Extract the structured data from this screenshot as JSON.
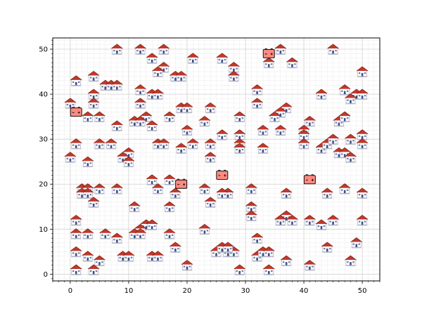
{
  "chart_data": {
    "type": "scatter",
    "title": "",
    "xlabel": "",
    "ylabel": "",
    "xlim": [
      -3,
      53
    ],
    "ylim": [
      -1.5,
      52.5
    ],
    "x_ticks": [
      "0",
      "10",
      "20",
      "30",
      "40",
      "50"
    ],
    "y_ticks": [
      "0",
      "10",
      "20",
      "30",
      "40",
      "50"
    ],
    "grid": "major and minor",
    "colors": {
      "roof": "#c0392b",
      "wall": "#ffffff",
      "door": "#3a4f8c",
      "battery": "#ff8a80",
      "battery_outline": "#000000"
    },
    "series": [
      {
        "marker_icon": "house-icon",
        "points": [
          [
            8,
            50
          ],
          [
            12,
            50
          ],
          [
            16,
            50
          ],
          [
            36,
            50
          ],
          [
            45,
            50
          ],
          [
            14,
            48
          ],
          [
            21,
            48
          ],
          [
            26,
            48
          ],
          [
            34,
            47
          ],
          [
            38,
            47
          ],
          [
            16,
            46
          ],
          [
            28,
            46
          ],
          [
            50,
            45
          ],
          [
            15,
            45
          ],
          [
            18,
            44
          ],
          [
            19,
            44
          ],
          [
            28,
            44
          ],
          [
            4,
            44
          ],
          [
            1,
            43
          ],
          [
            6,
            42
          ],
          [
            7,
            42
          ],
          [
            8,
            42
          ],
          [
            12,
            41
          ],
          [
            14,
            40
          ],
          [
            15,
            40
          ],
          [
            32,
            41
          ],
          [
            43,
            40
          ],
          [
            47,
            41
          ],
          [
            49,
            40
          ],
          [
            50,
            40
          ],
          [
            4,
            40
          ],
          [
            4,
            38
          ],
          [
            0,
            38
          ],
          [
            12,
            38
          ],
          [
            32,
            38
          ],
          [
            48,
            39
          ],
          [
            19,
            37
          ],
          [
            20,
            37
          ],
          [
            24,
            37
          ],
          [
            37,
            37
          ],
          [
            36,
            36
          ],
          [
            3,
            35
          ],
          [
            5,
            35
          ],
          [
            13,
            35
          ],
          [
            17,
            35
          ],
          [
            29,
            35
          ],
          [
            35,
            35
          ],
          [
            11,
            34
          ],
          [
            12,
            34
          ],
          [
            14,
            33
          ],
          [
            8,
            33
          ],
          [
            23,
            34
          ],
          [
            41,
            34
          ],
          [
            33,
            32
          ],
          [
            36,
            32
          ],
          [
            40,
            32
          ],
          [
            20,
            32
          ],
          [
            26,
            31
          ],
          [
            29,
            31
          ],
          [
            40,
            31
          ],
          [
            46,
            34
          ],
          [
            47,
            35
          ],
          [
            50,
            31
          ],
          [
            1,
            29
          ],
          [
            5,
            29
          ],
          [
            7,
            29
          ],
          [
            15,
            29
          ],
          [
            16,
            29
          ],
          [
            24,
            29
          ],
          [
            29,
            29
          ],
          [
            40,
            29
          ],
          [
            43,
            28
          ],
          [
            44,
            29
          ],
          [
            45,
            30
          ],
          [
            48,
            30
          ],
          [
            50,
            29
          ],
          [
            19,
            28
          ],
          [
            21,
            29
          ],
          [
            29,
            28
          ],
          [
            33,
            28
          ],
          [
            10,
            27
          ],
          [
            9,
            26
          ],
          [
            10,
            25
          ],
          [
            0,
            26
          ],
          [
            3,
            25
          ],
          [
            24,
            26
          ],
          [
            46,
            27
          ],
          [
            47,
            27
          ],
          [
            48,
            26
          ],
          [
            14,
            21
          ],
          [
            17,
            21
          ],
          [
            15,
            19
          ],
          [
            18,
            18
          ],
          [
            23,
            19
          ],
          [
            27,
            18
          ],
          [
            26,
            18
          ],
          [
            31,
            19
          ],
          [
            2,
            19
          ],
          [
            3,
            19
          ],
          [
            5,
            19
          ],
          [
            8,
            19
          ],
          [
            2,
            18
          ],
          [
            3,
            18
          ],
          [
            4,
            16
          ],
          [
            37,
            18
          ],
          [
            44,
            18
          ],
          [
            47,
            19
          ],
          [
            50,
            18
          ],
          [
            11,
            15
          ],
          [
            17,
            15
          ],
          [
            24,
            16
          ],
          [
            31,
            15
          ],
          [
            31,
            13
          ],
          [
            1,
            12
          ],
          [
            13,
            11
          ],
          [
            12,
            10
          ],
          [
            14,
            11
          ],
          [
            11,
            9
          ],
          [
            12,
            9
          ],
          [
            36,
            12
          ],
          [
            37,
            13
          ],
          [
            36,
            12
          ],
          [
            38,
            12
          ],
          [
            41,
            12
          ],
          [
            43,
            11
          ],
          [
            45,
            12
          ],
          [
            50,
            12
          ],
          [
            1,
            9
          ],
          [
            3,
            9
          ],
          [
            6,
            9
          ],
          [
            8,
            8
          ],
          [
            17,
            9
          ],
          [
            23,
            10
          ],
          [
            32,
            8
          ],
          [
            1,
            5
          ],
          [
            3,
            4
          ],
          [
            5,
            3
          ],
          [
            9,
            4
          ],
          [
            10,
            4
          ],
          [
            14,
            4
          ],
          [
            15,
            4
          ],
          [
            18,
            6
          ],
          [
            25,
            5
          ],
          [
            26,
            6
          ],
          [
            27,
            5
          ],
          [
            28,
            5
          ],
          [
            27,
            6
          ],
          [
            32,
            4
          ],
          [
            33,
            5
          ],
          [
            34,
            5
          ],
          [
            37,
            3
          ],
          [
            44,
            6
          ],
          [
            49,
            7
          ],
          [
            48,
            3
          ],
          [
            1,
            1
          ],
          [
            4,
            1
          ],
          [
            20,
            2
          ],
          [
            29,
            1
          ],
          [
            34,
            1
          ],
          [
            41,
            2
          ]
        ]
      },
      {
        "marker_icon": "battery-icon",
        "points": [
          [
            1,
            36
          ],
          [
            34,
            49
          ],
          [
            26,
            22
          ],
          [
            19,
            20
          ],
          [
            41,
            21
          ]
        ]
      }
    ]
  }
}
